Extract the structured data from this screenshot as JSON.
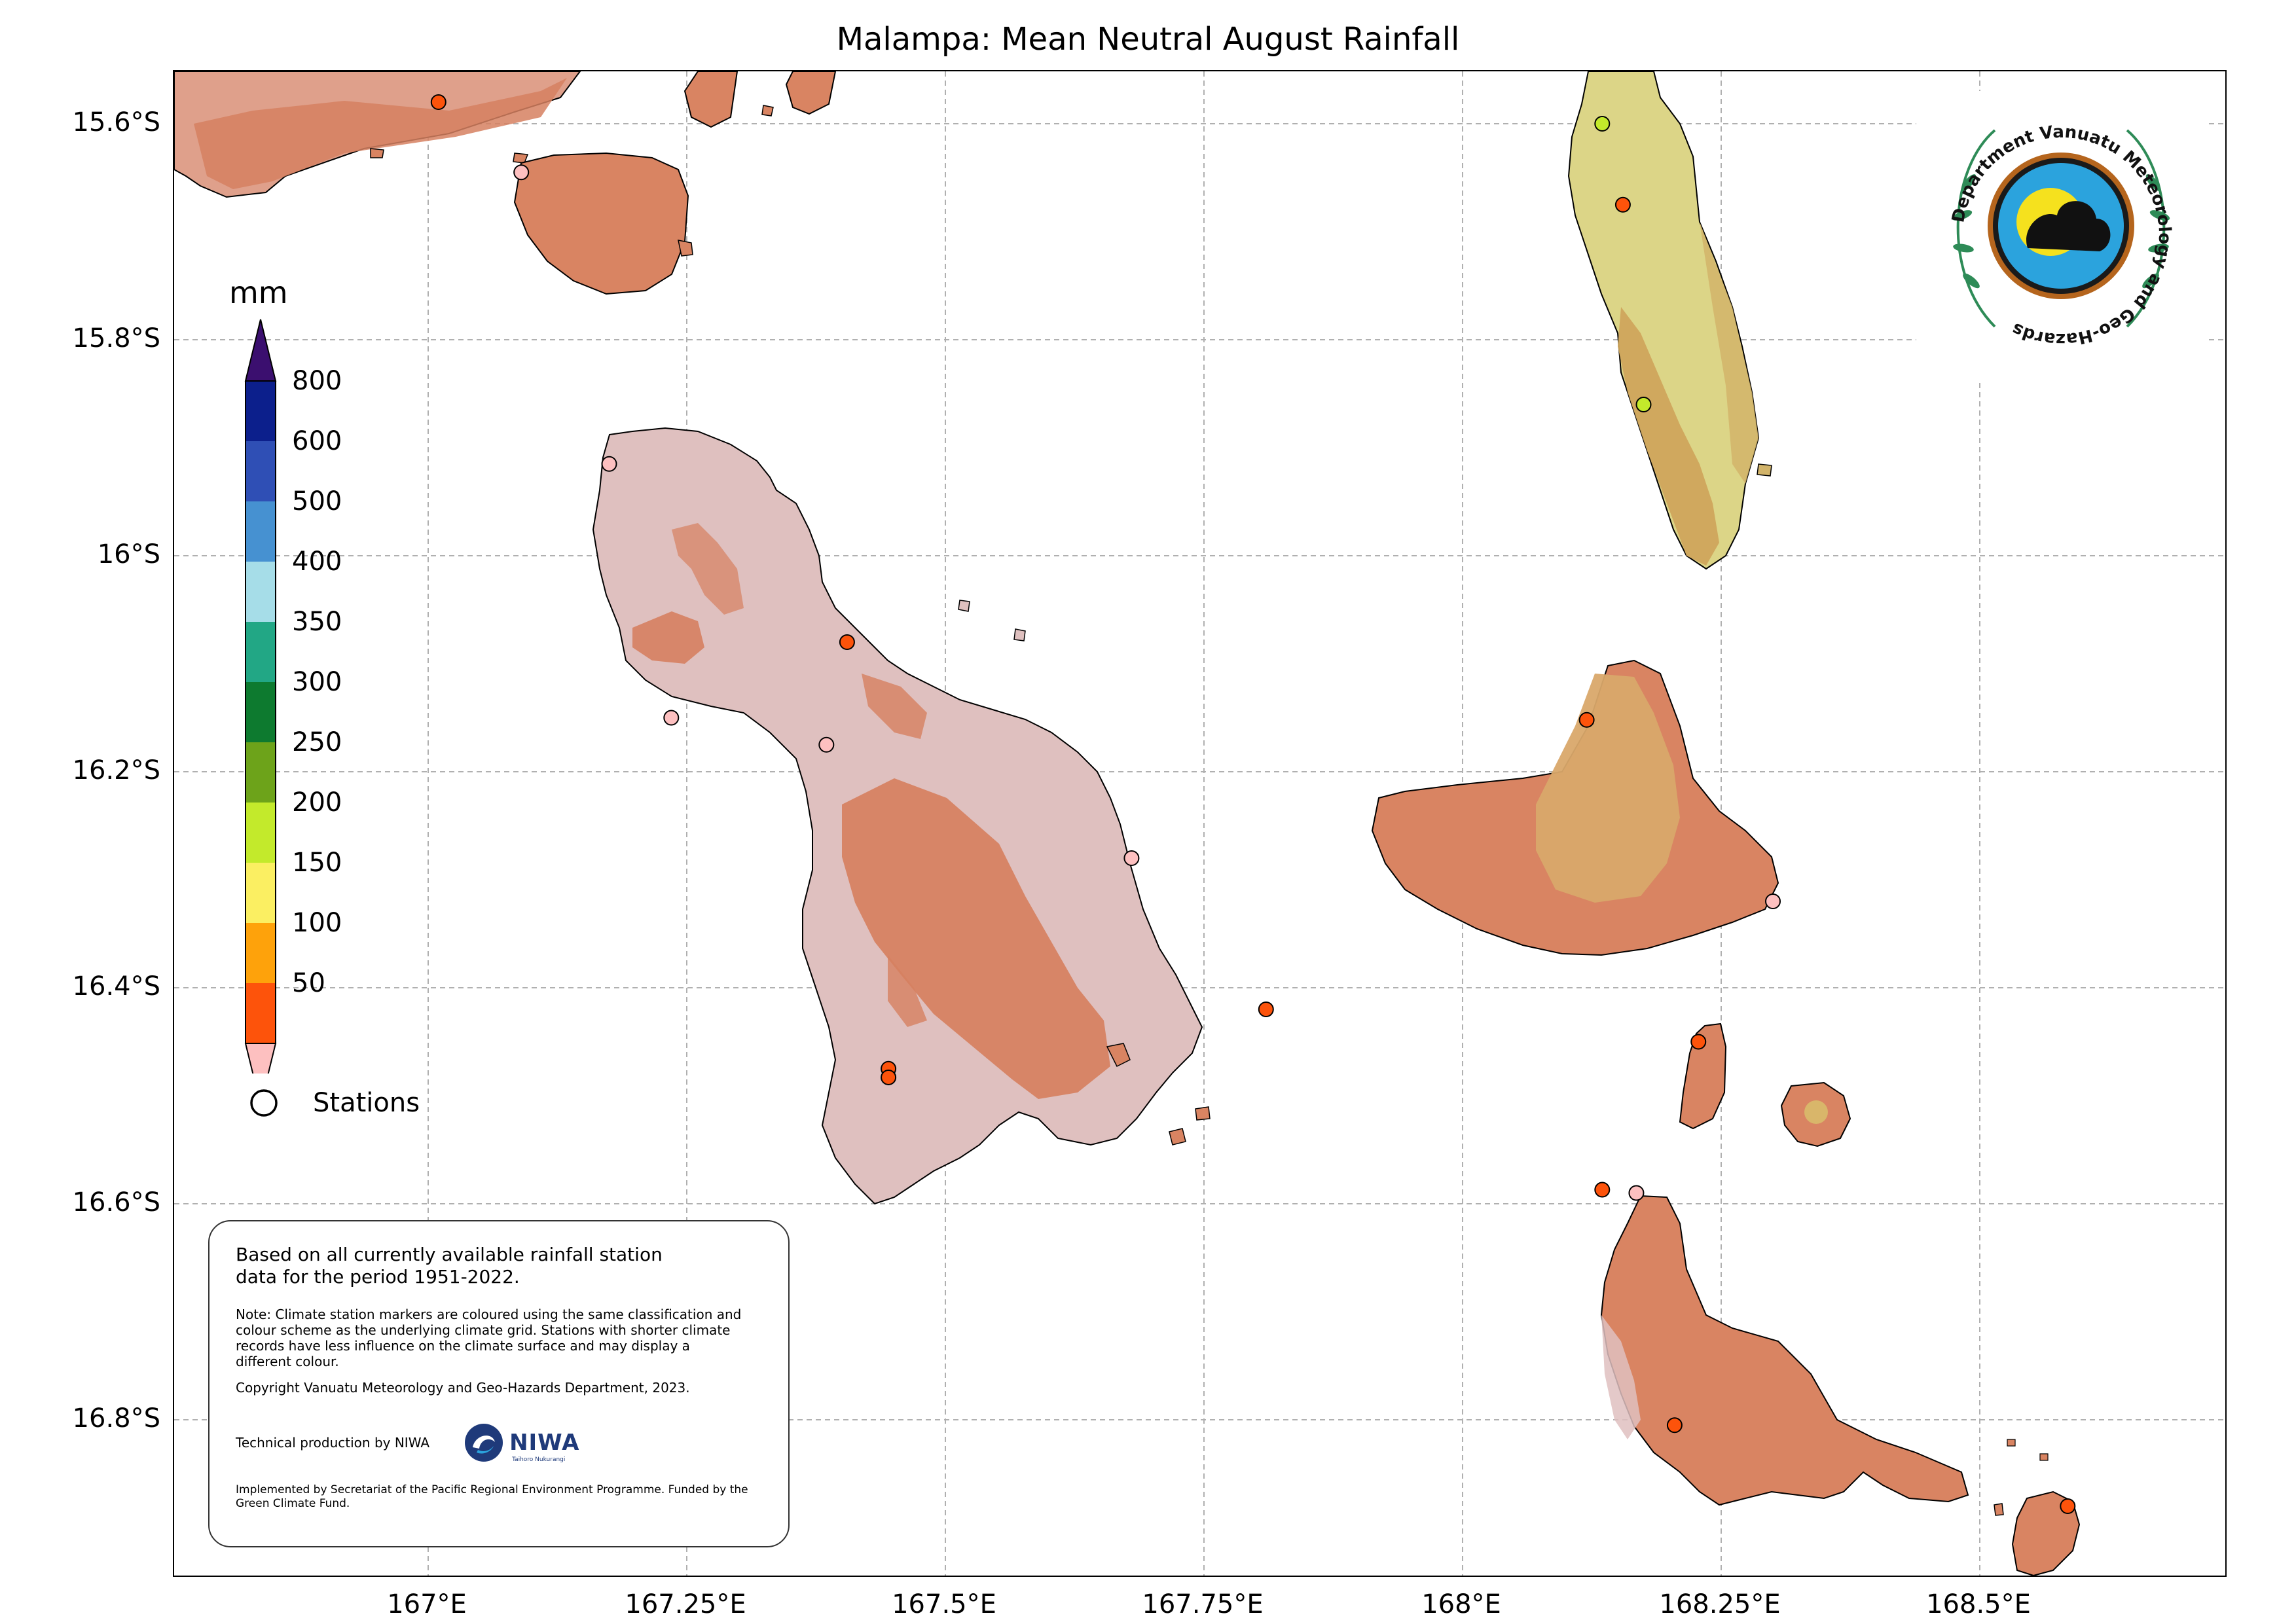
{
  "title": "Malampa: Mean Neutral August Rainfall",
  "axes": {
    "lat_ticks": [
      "15.6°S",
      "15.8°S",
      "16°S",
      "16.2°S",
      "16.4°S",
      "16.6°S",
      "16.8°S"
    ],
    "lon_ticks": [
      "167°E",
      "167.25°E",
      "167.5°E",
      "167.75°E",
      "168°E",
      "168.25°E",
      "168.5°E"
    ]
  },
  "colorbar": {
    "unit": "mm",
    "labels": [
      "800",
      "600",
      "500",
      "400",
      "350",
      "300",
      "250",
      "200",
      "150",
      "100",
      "50"
    ],
    "colors": [
      "#3b0f6f",
      "#0c1f8c",
      "#2f4fb5",
      "#4691d1",
      "#a6dde8",
      "#22a785",
      "#0d7a2f",
      "#6da31a",
      "#c3ea2b",
      "#fbef62",
      "#fea20b",
      "#fd530b",
      "#fdc0c0"
    ]
  },
  "legend": {
    "stations_label": "Stations"
  },
  "info": {
    "main": "Based on all currently available rainfall station data for the period 1951-2022.",
    "note": "Note: Climate station markers are coloured using the same classification and colour scheme as the underlying climate grid. Stations with shorter climate records have less influence on the climate surface and may display a different colour.",
    "copyright": "Copyright Vanuatu Meteorology and Geo-Hazards Department, 2023.",
    "technical": "Technical production by NIWA",
    "niwa_name": "NIWA",
    "niwa_tagline": "Taihoro Nukurangi",
    "implemented": "Implemented by Secretariat of the Pacific Regional Environment Programme. Funded by the Green Climate Fund."
  },
  "logo": {
    "text": "Department Vanuatu Meteorology and Geo-Hazards"
  },
  "stations": [
    {
      "lon": 167.01,
      "lat": -15.58,
      "class": "100"
    },
    {
      "lon": 167.09,
      "lat": -15.645,
      "class": "50"
    },
    {
      "lon": 167.175,
      "lat": -15.915,
      "class": "50"
    },
    {
      "lon": 167.235,
      "lat": -16.15,
      "class": "50"
    },
    {
      "lon": 167.385,
      "lat": -16.175,
      "class": "50"
    },
    {
      "lon": 167.405,
      "lat": -16.08,
      "class": "100"
    },
    {
      "lon": 167.445,
      "lat": -16.475,
      "class": "100"
    },
    {
      "lon": 167.445,
      "lat": -16.483,
      "class": "100"
    },
    {
      "lon": 167.68,
      "lat": -16.28,
      "class": "50"
    },
    {
      "lon": 167.81,
      "lat": -16.42,
      "class": "100"
    },
    {
      "lon": 168.135,
      "lat": -15.6,
      "class": "200"
    },
    {
      "lon": 168.155,
      "lat": -15.675,
      "class": "100"
    },
    {
      "lon": 168.175,
      "lat": -15.86,
      "class": "200"
    },
    {
      "lon": 168.12,
      "lat": -16.152,
      "class": "100"
    },
    {
      "lon": 168.3,
      "lat": -16.32,
      "class": "50"
    },
    {
      "lon": 168.228,
      "lat": -16.45,
      "class": "100"
    },
    {
      "lon": 168.135,
      "lat": -16.587,
      "class": "100"
    },
    {
      "lon": 168.168,
      "lat": -16.59,
      "class": "50"
    },
    {
      "lon": 168.205,
      "lat": -16.805,
      "class": "100"
    },
    {
      "lon": 168.585,
      "lat": -16.88,
      "class": "100"
    }
  ]
}
